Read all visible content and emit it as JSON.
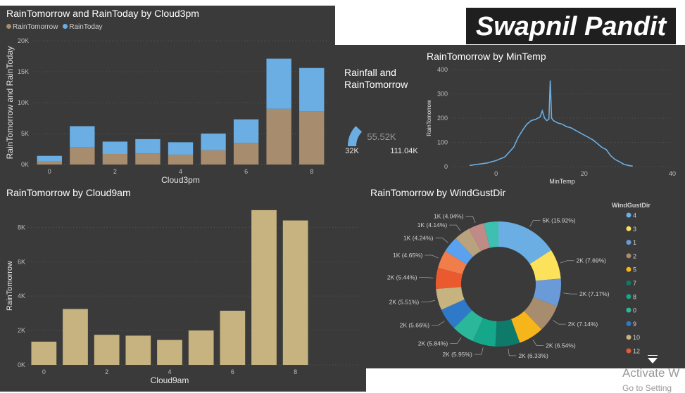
{
  "banner": {
    "text": "Swapnil Pandit"
  },
  "watermark": {
    "line1": "Activate W",
    "line2": "Go to Setting"
  },
  "colors": {
    "rain_tomorrow": "#a88c6e",
    "rain_today": "#6aaee3",
    "bar2": "#c7b37f",
    "line": "#6aaee3",
    "gauge": "#6aaee3"
  },
  "chart1": {
    "title": "RainTomorrow and RainToday by Cloud3pm",
    "legend": [
      "RainTomorrow",
      "RainToday"
    ],
    "chart_data": {
      "type": "bar",
      "stacked": true,
      "categories": [
        0,
        1,
        2,
        3,
        4,
        5,
        6,
        7,
        8
      ],
      "series": [
        {
          "name": "RainTomorrow",
          "values": [
            500,
            2800,
            1700,
            1800,
            1600,
            2300,
            3500,
            9000,
            8600
          ]
        },
        {
          "name": "RainToday",
          "values": [
            900,
            3400,
            2000,
            2300,
            2000,
            2700,
            3800,
            8100,
            7000
          ]
        }
      ],
      "xlabel": "Cloud3pm",
      "ylabel": "RainTomorrow and RainToday",
      "yticks": [
        "0K",
        "5K",
        "10K",
        "15K",
        "20K"
      ],
      "xticks": [
        "0",
        "2",
        "4",
        "6",
        "8"
      ],
      "ylim": [
        0,
        20000
      ]
    }
  },
  "gauge": {
    "title_line1": "Rainfall and",
    "title_line2": "RainTomorrow",
    "value": "55.52K",
    "min": "32K",
    "max": "111.04K",
    "fill_fraction": 0.24
  },
  "chart2": {
    "title": "RainTomorrow by MinTemp",
    "chart_data": {
      "type": "line",
      "x": [
        -6,
        -4,
        -2,
        0,
        2,
        4,
        5,
        6,
        7,
        8,
        9,
        10,
        10.5,
        11,
        11.5,
        12,
        12.3,
        12.6,
        13,
        14,
        15,
        16,
        17,
        18,
        19,
        20,
        21,
        22,
        23,
        24,
        25,
        26,
        27,
        28,
        29,
        30,
        31
      ],
      "values": [
        5,
        10,
        15,
        25,
        40,
        80,
        120,
        150,
        175,
        190,
        195,
        205,
        230,
        200,
        190,
        195,
        355,
        200,
        190,
        180,
        175,
        165,
        160,
        150,
        140,
        130,
        120,
        110,
        95,
        80,
        70,
        45,
        30,
        20,
        10,
        5,
        2
      ],
      "xlabel": "MinTemp",
      "ylabel": "RainTomorrow",
      "yticks": [
        "0",
        "100",
        "200",
        "300",
        "400"
      ],
      "xticks": [
        "0",
        "20",
        "40"
      ],
      "ylim": [
        0,
        400
      ],
      "xlim": [
        -10,
        40
      ]
    }
  },
  "chart3": {
    "title": "RainTomorrow by Cloud9am",
    "chart_data": {
      "type": "bar",
      "categories": [
        0,
        1,
        2,
        3,
        4,
        5,
        6,
        7,
        8
      ],
      "values": [
        1350,
        3250,
        1750,
        1700,
        1450,
        2000,
        3150,
        9000,
        8400
      ],
      "xlabel": "Cloud9am",
      "ylabel": "RainTomorrow",
      "yticks": [
        "0K",
        "2K",
        "4K",
        "6K",
        "8K"
      ],
      "xticks": [
        "0",
        "2",
        "4",
        "6",
        "8"
      ],
      "ylim": [
        0,
        9200
      ]
    }
  },
  "chart4": {
    "title": "RainTomorrow by WindGustDir",
    "legend_title": "WindGustDir",
    "legend": [
      {
        "label": "4",
        "color": "#6aaee3"
      },
      {
        "label": "3",
        "color": "#fce15a"
      },
      {
        "label": "1",
        "color": "#6a9ad8"
      },
      {
        "label": "2",
        "color": "#a88c6e"
      },
      {
        "label": "5",
        "color": "#f7b51c"
      },
      {
        "label": "7",
        "color": "#0e7a6a"
      },
      {
        "label": "8",
        "color": "#15a78a"
      },
      {
        "label": "0",
        "color": "#2bb79a"
      },
      {
        "label": "9",
        "color": "#2e7ac8"
      },
      {
        "label": "10",
        "color": "#c7b37f"
      },
      {
        "label": "12",
        "color": "#ea5a2e"
      }
    ],
    "chart_data": {
      "type": "pie",
      "donut": true,
      "slices": [
        {
          "label": "5K (15.92%)",
          "value": 15.92,
          "color": "#6aaee3"
        },
        {
          "label": "2K (7.69%)",
          "value": 7.69,
          "color": "#fce15a"
        },
        {
          "label": "2K (7.17%)",
          "value": 7.17,
          "color": "#6a9ad8"
        },
        {
          "label": "2K (7.14%)",
          "value": 7.14,
          "color": "#a88c6e"
        },
        {
          "label": "2K (6.54%)",
          "value": 6.54,
          "color": "#f7b51c"
        },
        {
          "label": "2K (6.33%)",
          "value": 6.33,
          "color": "#0e7a6a"
        },
        {
          "label": "2K (5.95%)",
          "value": 5.95,
          "color": "#15a78a"
        },
        {
          "label": "2K (5.84%)",
          "value": 5.84,
          "color": "#2bb79a"
        },
        {
          "label": "2K (5.66%)",
          "value": 5.66,
          "color": "#2e7ac8"
        },
        {
          "label": "2K (5.51%)",
          "value": 5.51,
          "color": "#c7b37f"
        },
        {
          "label": "2K (5.44%)",
          "value": 5.44,
          "color": "#ea5a2e"
        },
        {
          "label": "1K (4.65%)",
          "value": 4.65,
          "color": "#f07d4a"
        },
        {
          "label": "1K (4.24%)",
          "value": 4.24,
          "color": "#5aa2f0"
        },
        {
          "label": "1K (4.14%)",
          "value": 4.14,
          "color": "#b9a27e"
        },
        {
          "label": "1K (4.04%)",
          "value": 4.04,
          "color": "#c08a86"
        },
        {
          "label": "",
          "value": 3.74,
          "color": "#3fbfb0"
        }
      ]
    }
  }
}
